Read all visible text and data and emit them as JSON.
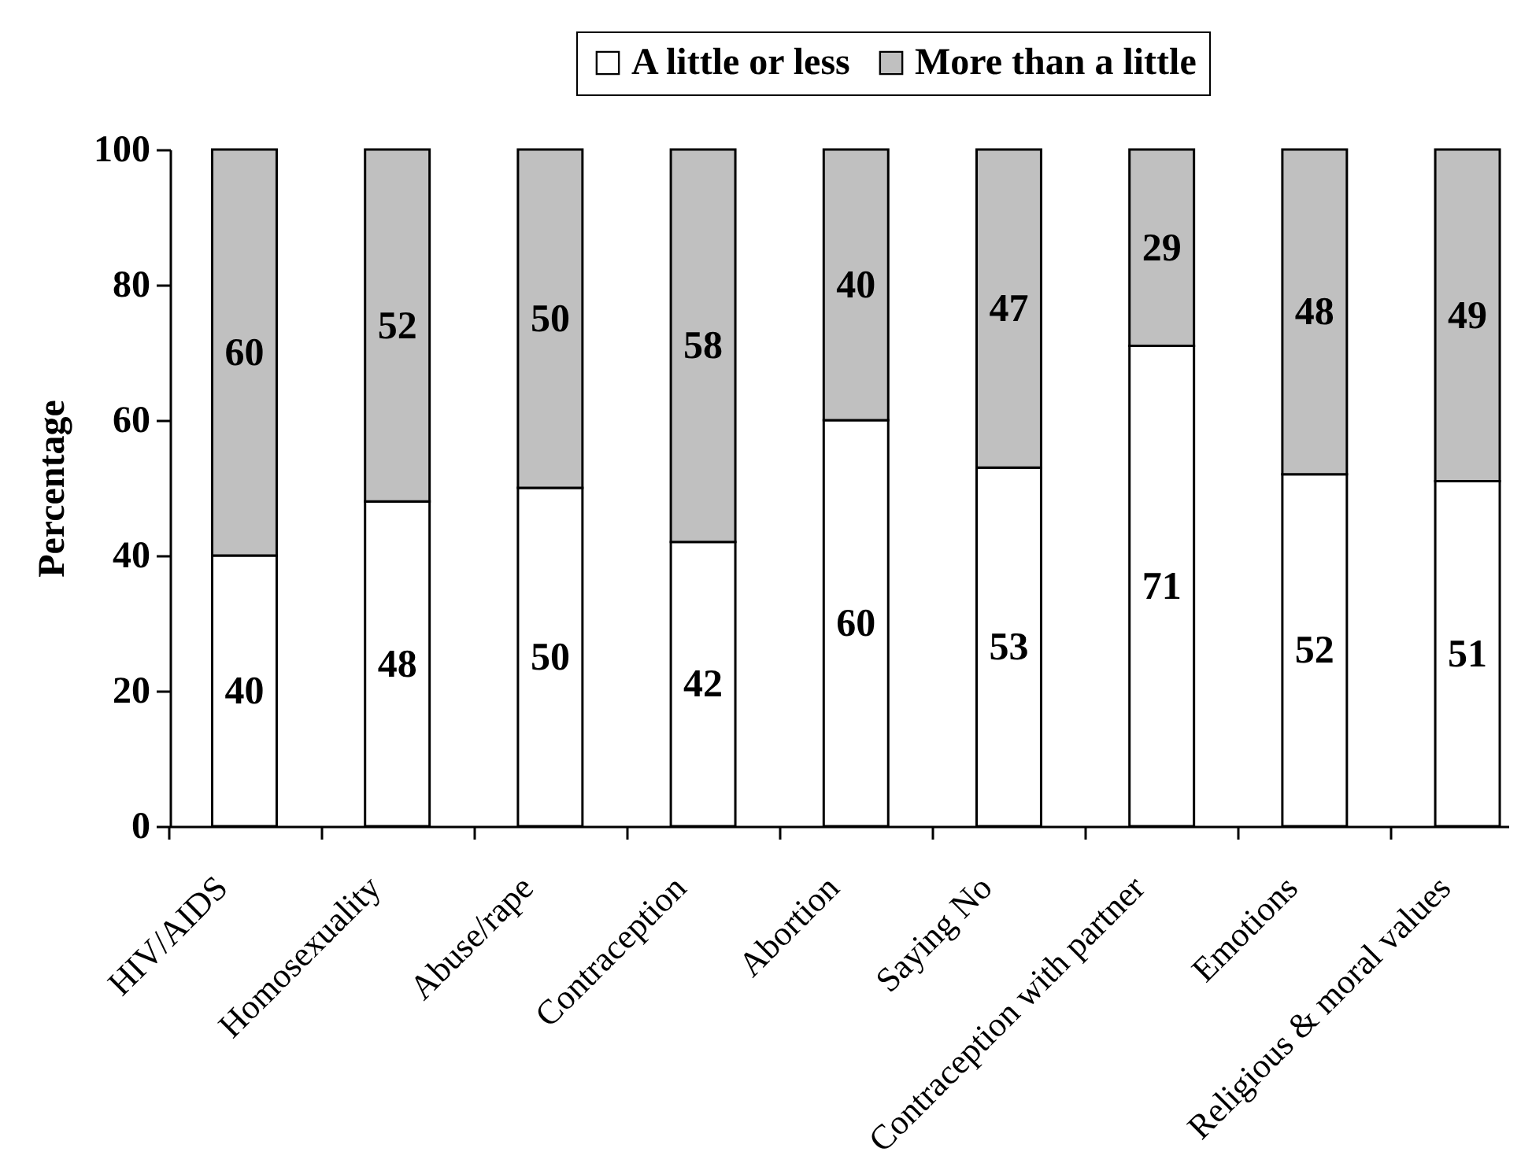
{
  "chart_data": {
    "type": "bar",
    "stacked": true,
    "ylabel": "Percentage",
    "categories": [
      "HIV/AIDS",
      "Homosexuality",
      "Abuse/rape",
      "Contraception",
      "Abortion",
      "Saying No",
      "Contraception with partner",
      "Emotions",
      "Religious & moral values"
    ],
    "series": [
      {
        "name": "A little or less",
        "color": "#ffffff",
        "values": [
          40,
          48,
          50,
          42,
          60,
          53,
          71,
          52,
          51
        ]
      },
      {
        "name": "More than a little",
        "color": "#c0c0c0",
        "values": [
          60,
          52,
          50,
          58,
          40,
          47,
          29,
          48,
          49
        ]
      }
    ],
    "ylim": [
      0,
      100
    ],
    "yticks": [
      0,
      20,
      40,
      60,
      80,
      100
    ],
    "data_labels": true,
    "legend": "top"
  }
}
